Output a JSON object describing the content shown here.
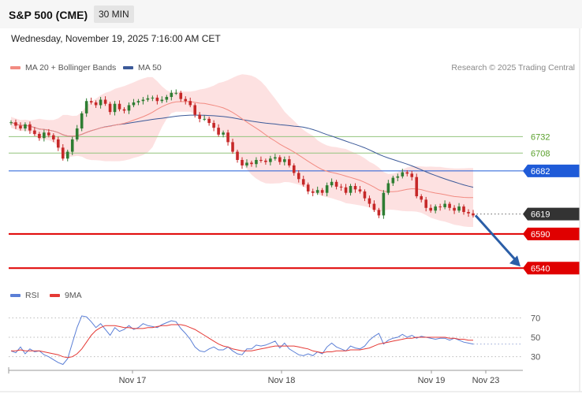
{
  "header": {
    "title": "S&P 500 (CME)",
    "timeframe": "30 MIN"
  },
  "date_line": "Wednesday, November 19, 2025 7:16:00 AM CET",
  "legend": {
    "ma20": "MA 20 + Bollinger Bands",
    "ma50": "MA 50",
    "rsi": "RSI",
    "ma9": "9MA"
  },
  "credit": "Research © 2025 Trading Central",
  "colors": {
    "candle_up": "#2e7d32",
    "candle_down": "#c62828",
    "bollinger_fill": "#fddcdc",
    "ma20": "#f28b82",
    "ma50": "#3c5a99",
    "resistance": "#93c47d",
    "pivot": "#1f5bd8",
    "support": "#e00000",
    "current": "#333333",
    "rsi": "#5b7fd6",
    "ma9": "#e53935",
    "arrow": "#2b5ea7"
  },
  "chart_data": [
    {
      "type": "candlestick",
      "x_ticks": [
        "Nov 17",
        "Nov 18",
        "Nov 19",
        "Nov 23"
      ],
      "y_range": [
        6515,
        6805
      ],
      "levels": [
        {
          "value": 6732,
          "label": "6732",
          "kind": "resistance"
        },
        {
          "value": 6708,
          "label": "6708",
          "kind": "resistance"
        },
        {
          "value": 6682,
          "label": "6682",
          "kind": "pivot"
        },
        {
          "value": 6619,
          "label": "6619",
          "kind": "current"
        },
        {
          "value": 6590,
          "label": "6590",
          "kind": "support"
        },
        {
          "value": 6540,
          "label": "6540",
          "kind": "support"
        }
      ],
      "forecast_arrow": {
        "from": 6617,
        "to": 6540,
        "direction": "down"
      },
      "close": [
        6753,
        6748,
        6744,
        6750,
        6741,
        6736,
        6730,
        6738,
        6734,
        6728,
        6716,
        6700,
        6710,
        6728,
        6744,
        6766,
        6784,
        6782,
        6778,
        6786,
        6780,
        6768,
        6780,
        6772,
        6770,
        6778,
        6782,
        6784,
        6786,
        6788,
        6789,
        6784,
        6786,
        6790,
        6796,
        6796,
        6787,
        6784,
        6778,
        6764,
        6758,
        6758,
        6752,
        6745,
        6735,
        6738,
        6724,
        6710,
        6698,
        6690,
        6694,
        6692,
        6698,
        6697,
        6695,
        6700,
        6702,
        6695,
        6699,
        6690,
        6679,
        6670,
        6662,
        6652,
        6650,
        6654,
        6650,
        6661,
        6666,
        6659,
        6658,
        6650,
        6660,
        6655,
        6652,
        6642,
        6634,
        6625,
        6617,
        6650,
        6664,
        6672,
        6674,
        6680,
        6678,
        6673,
        6645,
        6640,
        6628,
        6624,
        6630,
        6629,
        6634,
        6628,
        6624,
        6630,
        6622,
        6620,
        6617
      ],
      "open": [
        6753,
        6753,
        6748,
        6744,
        6750,
        6741,
        6736,
        6730,
        6738,
        6734,
        6728,
        6716,
        6700,
        6710,
        6728,
        6744,
        6766,
        6784,
        6782,
        6778,
        6786,
        6780,
        6768,
        6780,
        6772,
        6770,
        6778,
        6782,
        6784,
        6786,
        6788,
        6789,
        6784,
        6786,
        6790,
        6796,
        6796,
        6787,
        6784,
        6778,
        6764,
        6758,
        6758,
        6752,
        6745,
        6735,
        6738,
        6724,
        6710,
        6698,
        6690,
        6694,
        6692,
        6698,
        6697,
        6695,
        6700,
        6702,
        6695,
        6699,
        6690,
        6679,
        6670,
        6662,
        6652,
        6650,
        6654,
        6650,
        6661,
        6666,
        6659,
        6658,
        6650,
        6660,
        6655,
        6652,
        6642,
        6634,
        6625,
        6617,
        6650,
        6664,
        6672,
        6674,
        6680,
        6678,
        6673,
        6645,
        6640,
        6628,
        6624,
        6630,
        6629,
        6634,
        6628,
        6624,
        6630,
        6622,
        6620
      ]
    },
    {
      "type": "line",
      "y_range": [
        20,
        80
      ],
      "y_ticks": [
        30,
        50,
        70
      ],
      "series": [
        {
          "name": "RSI",
          "values": [
            36,
            34,
            40,
            33,
            38,
            35,
            36,
            32,
            30,
            27,
            24,
            22,
            28,
            44,
            60,
            72,
            71,
            66,
            60,
            64,
            58,
            52,
            60,
            56,
            58,
            62,
            58,
            60,
            64,
            62,
            61,
            60,
            63,
            65,
            67,
            66,
            59,
            54,
            48,
            40,
            36,
            35,
            38,
            40,
            37,
            37,
            40,
            36,
            33,
            32,
            38,
            38,
            42,
            41,
            42,
            44,
            46,
            39,
            44,
            38,
            35,
            32,
            31,
            33,
            31,
            35,
            33,
            40,
            44,
            40,
            38,
            36,
            41,
            39,
            38,
            41,
            47,
            51,
            54,
            43,
            47,
            49,
            50,
            53,
            50,
            52,
            49,
            51,
            50,
            49,
            48,
            49,
            49,
            47,
            49,
            47,
            45,
            44,
            43
          ]
        },
        {
          "name": "9MA",
          "values": [
            36,
            36,
            37,
            36,
            36,
            36,
            36,
            35,
            34,
            33,
            32,
            30,
            29,
            30,
            33,
            38,
            45,
            52,
            57,
            60,
            62,
            62,
            62,
            61,
            60,
            60,
            59,
            59,
            59,
            60,
            60,
            61,
            62,
            62,
            63,
            63,
            63,
            62,
            60,
            58,
            55,
            52,
            49,
            46,
            43,
            41,
            40,
            38,
            37,
            36,
            36,
            36,
            37,
            38,
            39,
            40,
            41,
            41,
            41,
            41,
            41,
            40,
            39,
            38,
            36,
            35,
            34,
            35,
            35,
            36,
            36,
            36,
            37,
            37,
            37,
            38,
            39,
            41,
            43,
            44,
            45,
            46,
            47,
            48,
            49,
            49,
            50,
            50,
            50,
            50,
            50,
            50,
            50,
            49,
            49,
            48,
            48,
            47,
            47
          ]
        }
      ]
    }
  ]
}
